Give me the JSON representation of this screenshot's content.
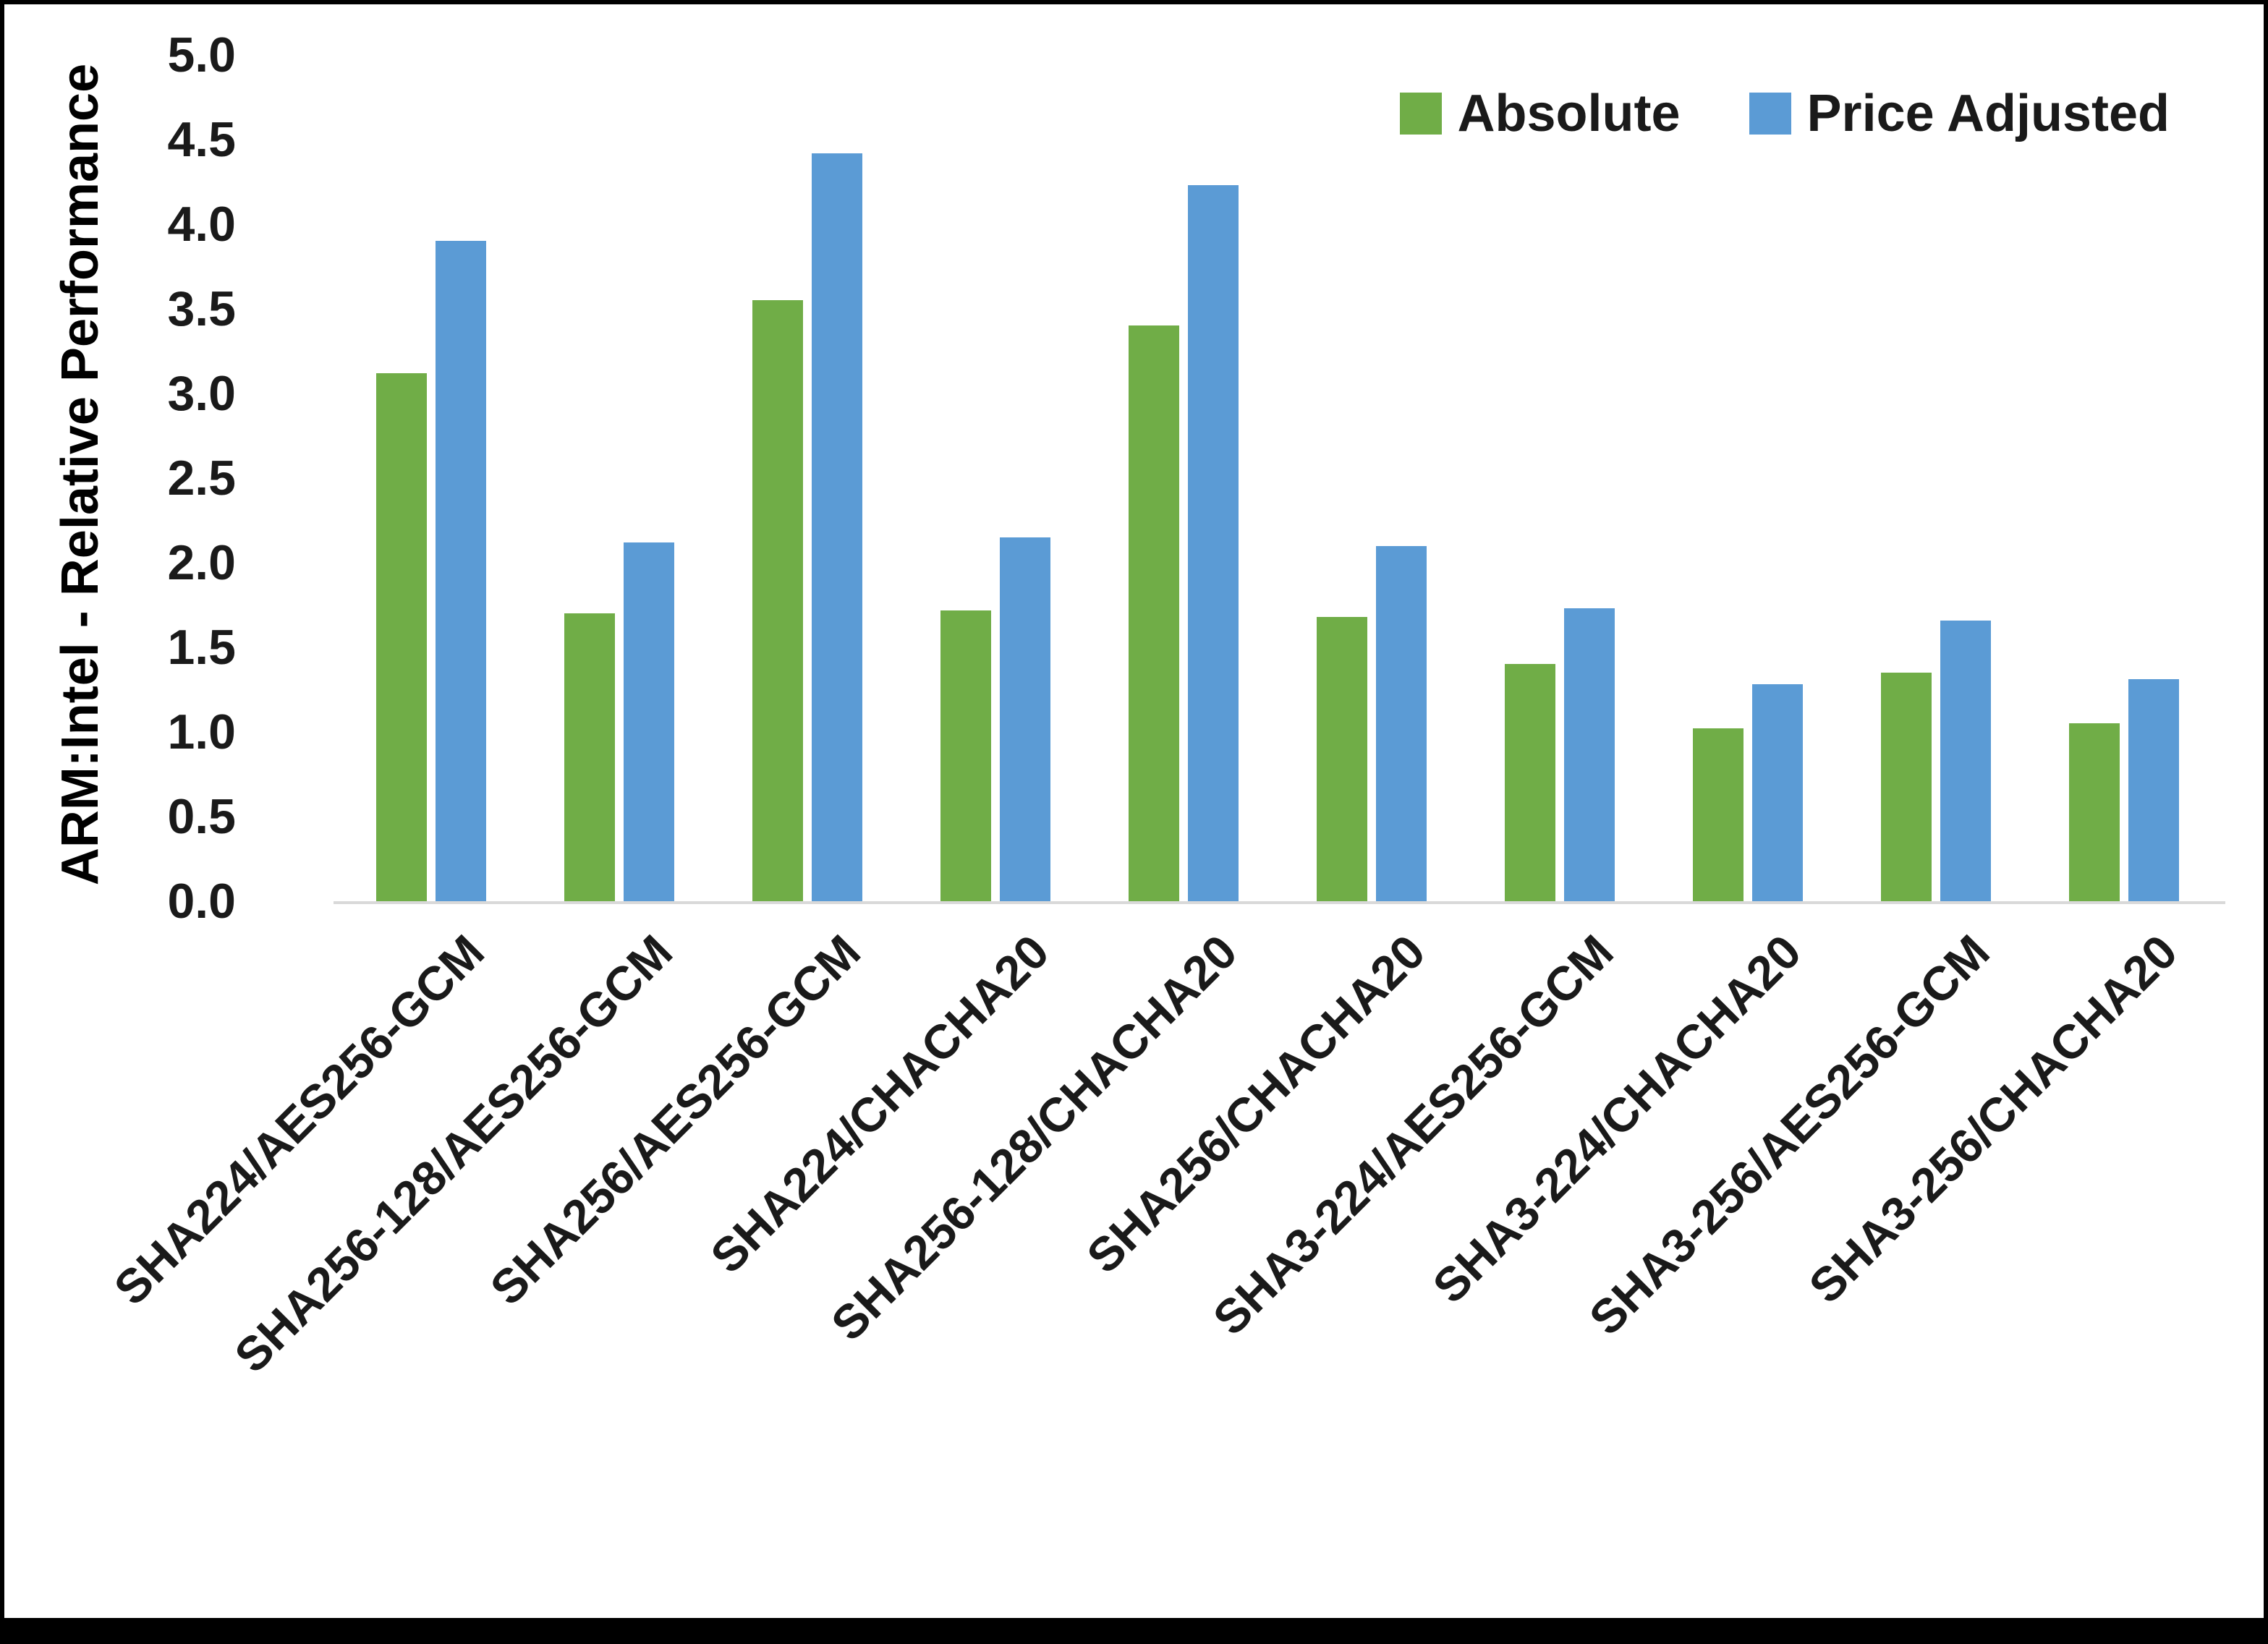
{
  "chart_data": {
    "type": "bar",
    "title": "",
    "xlabel": "",
    "ylabel": "ARM:Intel - Relative Performance",
    "ylim": [
      0,
      5
    ],
    "ytick_step": 0.5,
    "ytick_labels": [
      "0.0",
      "0.5",
      "1.0",
      "1.5",
      "2.0",
      "2.5",
      "3.0",
      "3.5",
      "4.0",
      "4.5",
      "5.0"
    ],
    "grid": false,
    "legend_position": "top-right",
    "categories": [
      "SHA224/AES256-GCM",
      "SHA256-128/AES256-GCM",
      "SHA256/AES256-GCM",
      "SHA224/CHACHA20",
      "SHA256-128/CHACHA20",
      "SHA256/CHACHA20",
      "SHA3-224/AES256-GCM",
      "SHA3-224/CHACHA20",
      "SHA3-256/AES256-GCM",
      "SHA3-256/CHACHA20"
    ],
    "series": [
      {
        "name": "Absolute",
        "color": "#70AD47",
        "values": [
          3.12,
          1.7,
          3.55,
          1.72,
          3.4,
          1.68,
          1.4,
          1.02,
          1.35,
          1.05
        ]
      },
      {
        "name": "Price Adjusted",
        "color": "#5B9BD5",
        "values": [
          3.9,
          2.12,
          4.42,
          2.15,
          4.23,
          2.1,
          1.73,
          1.28,
          1.66,
          1.31
        ]
      }
    ]
  },
  "colors": {
    "absolute_series": "#70AD47",
    "price_adjusted_series": "#5B9BD5",
    "axis_line": "#d9d9d9",
    "frame_border": "#000000",
    "background": "#ffffff"
  }
}
